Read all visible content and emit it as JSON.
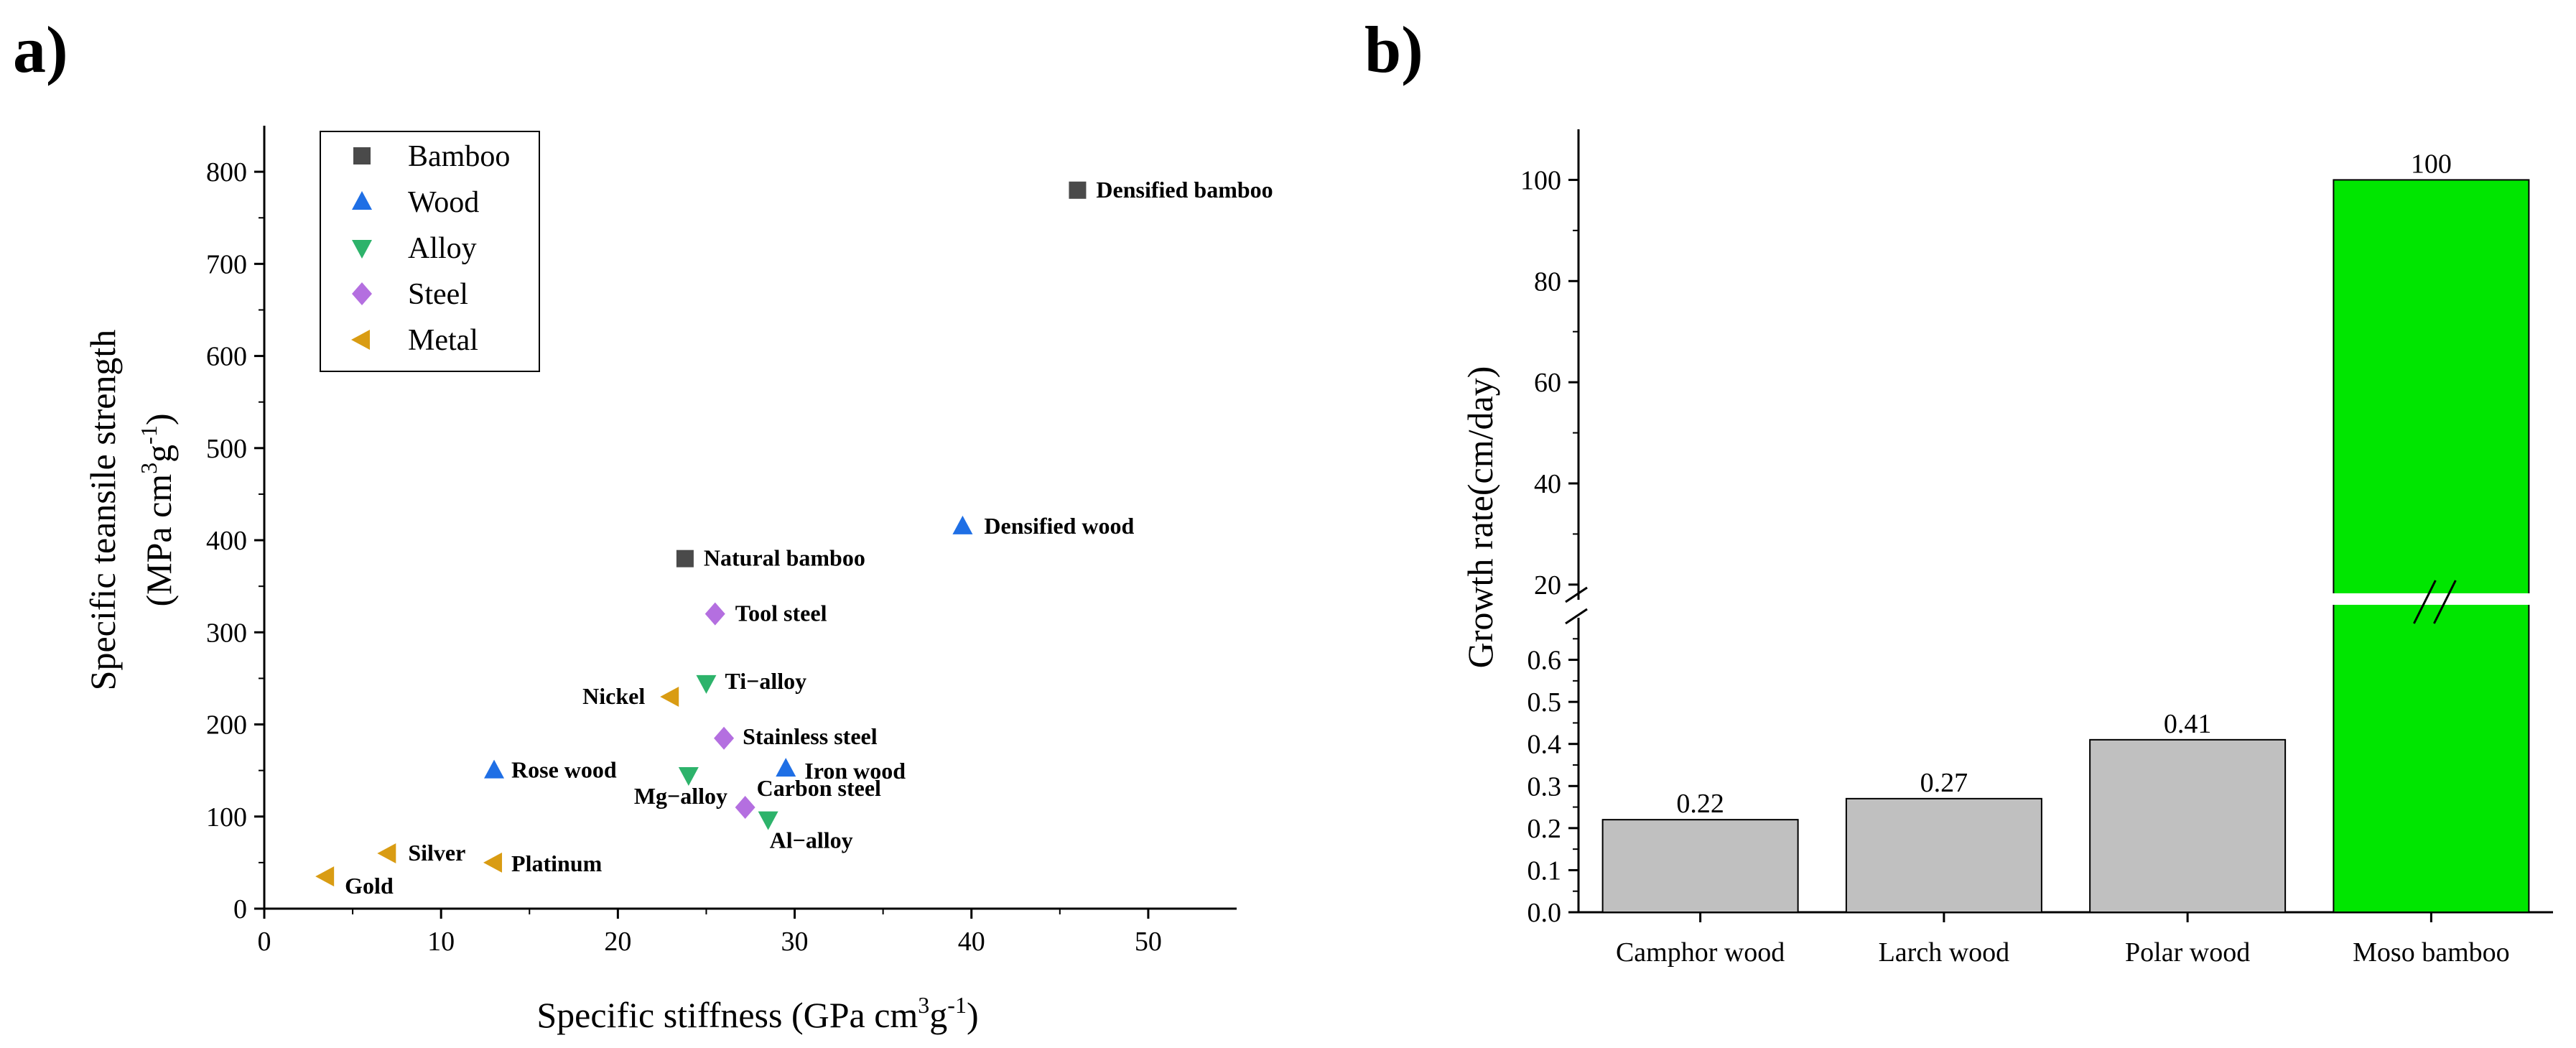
{
  "panel_a_label": "a)",
  "panel_b_label": "b)",
  "chart_data": [
    {
      "type": "scatter",
      "xlabel": "Specific stiffness (GPa cm",
      "xlabel_sup": "3",
      "xlabel_mid": "g",
      "xlabel_sup2": "-1",
      "xlabel_end": ")",
      "ylabel_line1": "Specific teansile strength",
      "ylabel_line2_a": "(MPa cm",
      "ylabel_line2_sup": "3",
      "ylabel_line2_b": "g",
      "ylabel_line2_sup2": "-1",
      "ylabel_line2_c": ")",
      "xlim": [
        0,
        55
      ],
      "ylim": [
        0,
        850
      ],
      "xticks": [
        0,
        10,
        20,
        30,
        40,
        50
      ],
      "yticks": [
        0,
        100,
        200,
        300,
        400,
        500,
        600,
        700,
        800
      ],
      "legend_position": "top-left",
      "series": [
        {
          "name": "Bamboo",
          "marker": "square",
          "color": "#4a4a4a",
          "points": [
            {
              "label": "Densified bamboo",
              "x": 46,
              "y": 780
            },
            {
              "label": "Natural bamboo",
              "x": 23.8,
              "y": 380
            }
          ]
        },
        {
          "name": "Wood",
          "marker": "triangle-up",
          "color": "#1f6fe5",
          "points": [
            {
              "label": "Densified wood",
              "x": 39.5,
              "y": 415
            },
            {
              "label": "Rose wood",
              "x": 13,
              "y": 150
            },
            {
              "label": "Iron wood",
              "x": 29.5,
              "y": 152
            }
          ]
        },
        {
          "name": "Alloy",
          "marker": "triangle-down",
          "color": "#2db36b",
          "points": [
            {
              "label": "Ti−alloy",
              "x": 25,
              "y": 245
            },
            {
              "label": "Mg−alloy",
              "x": 24,
              "y": 145
            },
            {
              "label": "Al−alloy",
              "x": 28.5,
              "y": 97
            }
          ]
        },
        {
          "name": "Steel",
          "marker": "diamond",
          "color": "#b46fe0",
          "points": [
            {
              "label": "Tool steel",
              "x": 25.5,
              "y": 320
            },
            {
              "label": "Stainless steel",
              "x": 26,
              "y": 185
            },
            {
              "label": "Carbon steel",
              "x": 27.2,
              "y": 110
            }
          ]
        },
        {
          "name": "Metal",
          "marker": "triangle-left",
          "color": "#d99c13",
          "points": [
            {
              "label": "Nickel",
              "x": 23,
              "y": 230
            },
            {
              "label": "Silver",
              "x": 7,
              "y": 60
            },
            {
              "label": "Platinum",
              "x": 13,
              "y": 50
            },
            {
              "label": "Gold",
              "x": 3.5,
              "y": 35
            }
          ]
        }
      ]
    },
    {
      "type": "bar",
      "ylabel": "Growth rate(cm/day)",
      "categories": [
        "Camphor wood",
        "Larch wood",
        "Polar wood",
        "Moso bamboo"
      ],
      "values": [
        0.22,
        0.27,
        0.41,
        100
      ],
      "value_labels": [
        "0.22",
        "0.27",
        "0.41",
        "100"
      ],
      "bar_colors": [
        "#c0c0c0",
        "#c0c0c0",
        "#c0c0c0",
        "#00e600"
      ],
      "broken_axis": true,
      "lower_ylim": [
        0,
        0.7
      ],
      "lower_yticks": [
        "0.0",
        "0.1",
        "0.2",
        "0.3",
        "0.4",
        "0.5",
        "0.6"
      ],
      "upper_ylim": [
        17,
        110
      ],
      "upper_yticks": [
        "20",
        "40",
        "60",
        "80",
        "100"
      ]
    }
  ]
}
